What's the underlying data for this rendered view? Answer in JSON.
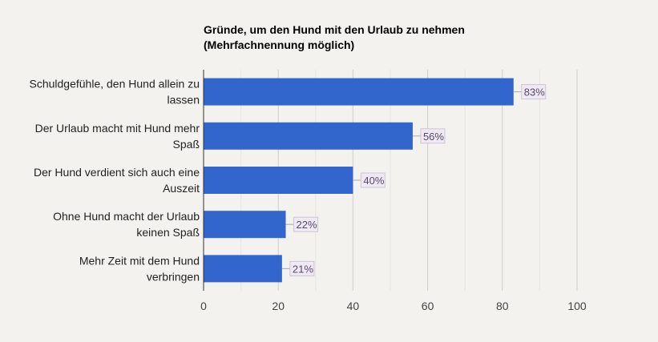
{
  "chart_data": {
    "type": "bar",
    "orientation": "horizontal",
    "title_lines": [
      "Gründe, um den Hund mit den Urlaub zu nehmen",
      "(Mehrfachnennung möglich)"
    ],
    "categories": [
      [
        "Schuldgefühle, den Hund allein zu",
        "lassen"
      ],
      [
        "Der Urlaub macht mit Hund mehr",
        "Spaß"
      ],
      [
        "Der Hund verdient sich auch eine",
        "Auszeit"
      ],
      [
        "Ohne Hund macht der Urlaub",
        "keinen Spaß"
      ],
      [
        "Mehr Zeit mit dem Hund",
        "verbringen"
      ]
    ],
    "values": [
      83,
      56,
      40,
      22,
      21
    ],
    "data_labels": [
      "83%",
      "56%",
      "40%",
      "22%",
      "21%"
    ],
    "xlim": [
      0,
      100
    ],
    "xticks": [
      0,
      20,
      40,
      60,
      80,
      100
    ],
    "grid": true,
    "colors": {
      "bar": "#3366cc",
      "background": "#f3f2ef",
      "label_bg": "#efe9f2",
      "label_border": "#cfc3da"
    }
  }
}
